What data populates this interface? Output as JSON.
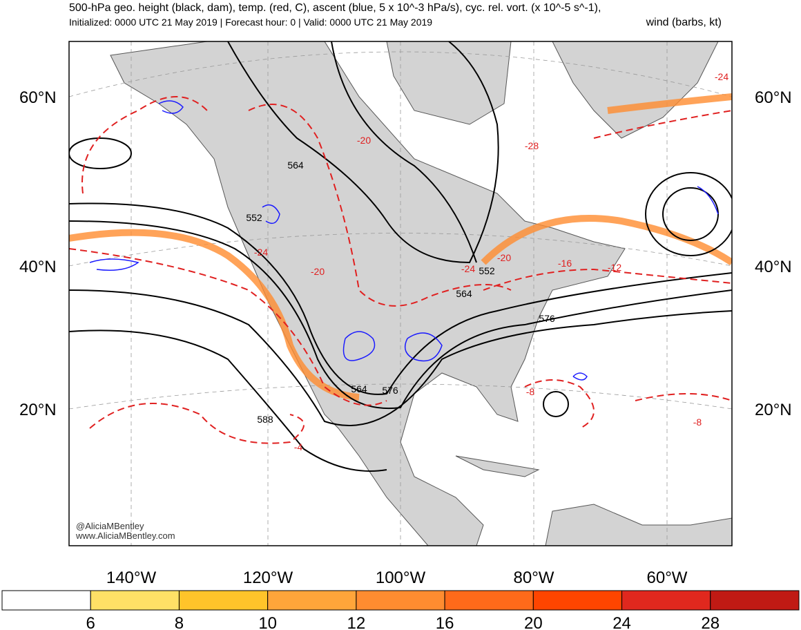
{
  "header": {
    "title": "500-hPa geo. height (black, dam), temp. (red, C), ascent (blue, 5 x 10^-3 hPa/s), cyc. rel. vort. (x 10^-5 s^-1),",
    "subtitle": "Initialized: 0000 UTC 21 May 2019 | Forecast hour: 0 | Valid: 0000 UTC 21 May 2019",
    "subtitle_right": "wind (barbs, kt)"
  },
  "map": {
    "lat_labels": [
      "60°N",
      "40°N",
      "20°N"
    ],
    "lon_labels": [
      "140°W",
      "120°W",
      "100°W",
      "80°W",
      "60°W"
    ],
    "height_labels": [
      "564",
      "552",
      "552",
      "564",
      "576",
      "564",
      "576",
      "588"
    ],
    "temp_labels": [
      "-20",
      "-28",
      "-24",
      "-24",
      "-20",
      "-20",
      "-24",
      "-16",
      "-12",
      "-8",
      "-8",
      "-4"
    ],
    "credits": [
      "@AliciaMBentley",
      "www.AliciaMBentley.com"
    ]
  },
  "colorbar": {
    "ticks": [
      6,
      8,
      10,
      12,
      16,
      20,
      24,
      28
    ],
    "colors": [
      "#ffffff",
      "#ffe066",
      "#ffc42a",
      "#ffa53a",
      "#ff8c30",
      "#ff6a1a",
      "#ff4500",
      "#e0281e",
      "#c01a14"
    ]
  }
}
